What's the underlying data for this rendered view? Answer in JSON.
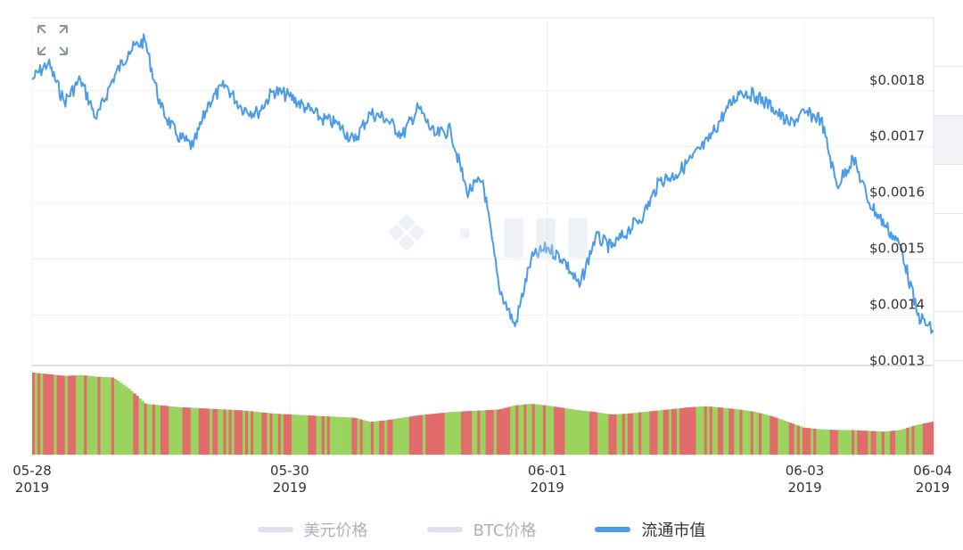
{
  "chart_data": {
    "type": "line",
    "title": "",
    "xlabel": "",
    "ylabel": "",
    "y_ticks": [
      "$0.0018",
      "$0.0017",
      "$0.0016",
      "$0.0015",
      "$0.0014",
      "$0.0013"
    ],
    "y_tick_values": [
      0.0018,
      0.0017,
      0.0016,
      0.0015,
      0.0014,
      0.0013
    ],
    "ylim": [
      0.00131,
      0.00193
    ],
    "x_ticks": [
      {
        "day": "05-28",
        "year": "2019"
      },
      {
        "day": "05-30",
        "year": "2019"
      },
      {
        "day": "06-01",
        "year": "2019"
      },
      {
        "day": "06-03",
        "year": "2019"
      },
      {
        "day": "06-04",
        "year": "2019"
      }
    ],
    "xlim": [
      "2019-05-28",
      "2019-06-04"
    ],
    "grid": true,
    "legend_position": "bottom",
    "series": [
      {
        "name": "流通市值",
        "color": "#4a9be8",
        "x": [
          "2019-05-28 00:00",
          "2019-05-28 03:00",
          "2019-05-28 06:00",
          "2019-05-28 09:00",
          "2019-05-28 12:00",
          "2019-05-28 15:00",
          "2019-05-28 18:00",
          "2019-05-28 21:00",
          "2019-05-29 00:00",
          "2019-05-29 03:00",
          "2019-05-29 06:00",
          "2019-05-29 09:00",
          "2019-05-29 12:00",
          "2019-05-29 15:00",
          "2019-05-29 18:00",
          "2019-05-29 21:00",
          "2019-05-30 00:00",
          "2019-05-30 03:00",
          "2019-05-30 06:00",
          "2019-05-30 09:00",
          "2019-05-30 12:00",
          "2019-05-30 15:00",
          "2019-05-30 18:00",
          "2019-05-30 21:00",
          "2019-05-31 00:00",
          "2019-05-31 03:00",
          "2019-05-31 06:00",
          "2019-05-31 09:00",
          "2019-05-31 12:00",
          "2019-05-31 15:00",
          "2019-05-31 18:00",
          "2019-05-31 21:00",
          "2019-06-01 00:00",
          "2019-06-01 03:00",
          "2019-06-01 06:00",
          "2019-06-01 09:00",
          "2019-06-01 12:00",
          "2019-06-01 15:00",
          "2019-06-01 18:00",
          "2019-06-01 21:00",
          "2019-06-02 00:00",
          "2019-06-02 03:00",
          "2019-06-02 06:00",
          "2019-06-02 09:00",
          "2019-06-02 12:00",
          "2019-06-02 15:00",
          "2019-06-02 18:00",
          "2019-06-02 21:00",
          "2019-06-03 00:00",
          "2019-06-03 03:00",
          "2019-06-03 06:00",
          "2019-06-03 09:00",
          "2019-06-03 12:00",
          "2019-06-03 15:00",
          "2019-06-03 18:00",
          "2019-06-03 21:00",
          "2019-06-04 00:00"
        ],
        "values": [
          0.00182,
          0.00185,
          0.00178,
          0.00182,
          0.00175,
          0.00182,
          0.00187,
          0.00189,
          0.00177,
          0.00172,
          0.0017,
          0.00178,
          0.00181,
          0.00177,
          0.00176,
          0.0018,
          0.00179,
          0.00177,
          0.00175,
          0.00174,
          0.00171,
          0.00176,
          0.00175,
          0.00172,
          0.00177,
          0.00172,
          0.00173,
          0.00162,
          0.00164,
          0.00145,
          0.00138,
          0.0015,
          0.00152,
          0.0015,
          0.00145,
          0.00154,
          0.00152,
          0.00155,
          0.00158,
          0.00164,
          0.00165,
          0.00168,
          0.00171,
          0.00176,
          0.0018,
          0.00179,
          0.00177,
          0.00174,
          0.00176,
          0.00175,
          0.00163,
          0.00168,
          0.0016,
          0.00156,
          0.00152,
          0.0014,
          0.00137
        ]
      }
    ],
    "volume": {
      "colors": [
        "#e26b6b",
        "#9ad35e"
      ],
      "values": [
        1.0,
        0.98,
        0.96,
        0.97,
        0.95,
        0.94,
        0.8,
        0.62,
        0.6,
        0.58,
        0.57,
        0.56,
        0.55,
        0.54,
        0.52,
        0.5,
        0.49,
        0.48,
        0.47,
        0.46,
        0.45,
        0.4,
        0.42,
        0.45,
        0.48,
        0.5,
        0.52,
        0.53,
        0.54,
        0.55,
        0.6,
        0.62,
        0.6,
        0.57,
        0.54,
        0.52,
        0.49,
        0.5,
        0.52,
        0.54,
        0.56,
        0.58,
        0.59,
        0.57,
        0.55,
        0.52,
        0.47,
        0.4,
        0.33,
        0.31,
        0.3,
        0.3,
        0.29,
        0.28,
        0.3,
        0.36,
        0.4
      ]
    }
  },
  "legend": [
    {
      "label": "美元价格",
      "color": "#dce1ea",
      "text_color": "#aab2c0"
    },
    {
      "label": "BTC价格",
      "color": "#dce1ea",
      "text_color": "#aab2c0"
    },
    {
      "label": "流通市值",
      "color": "#4a9be8",
      "text_color": "#333333"
    }
  ]
}
